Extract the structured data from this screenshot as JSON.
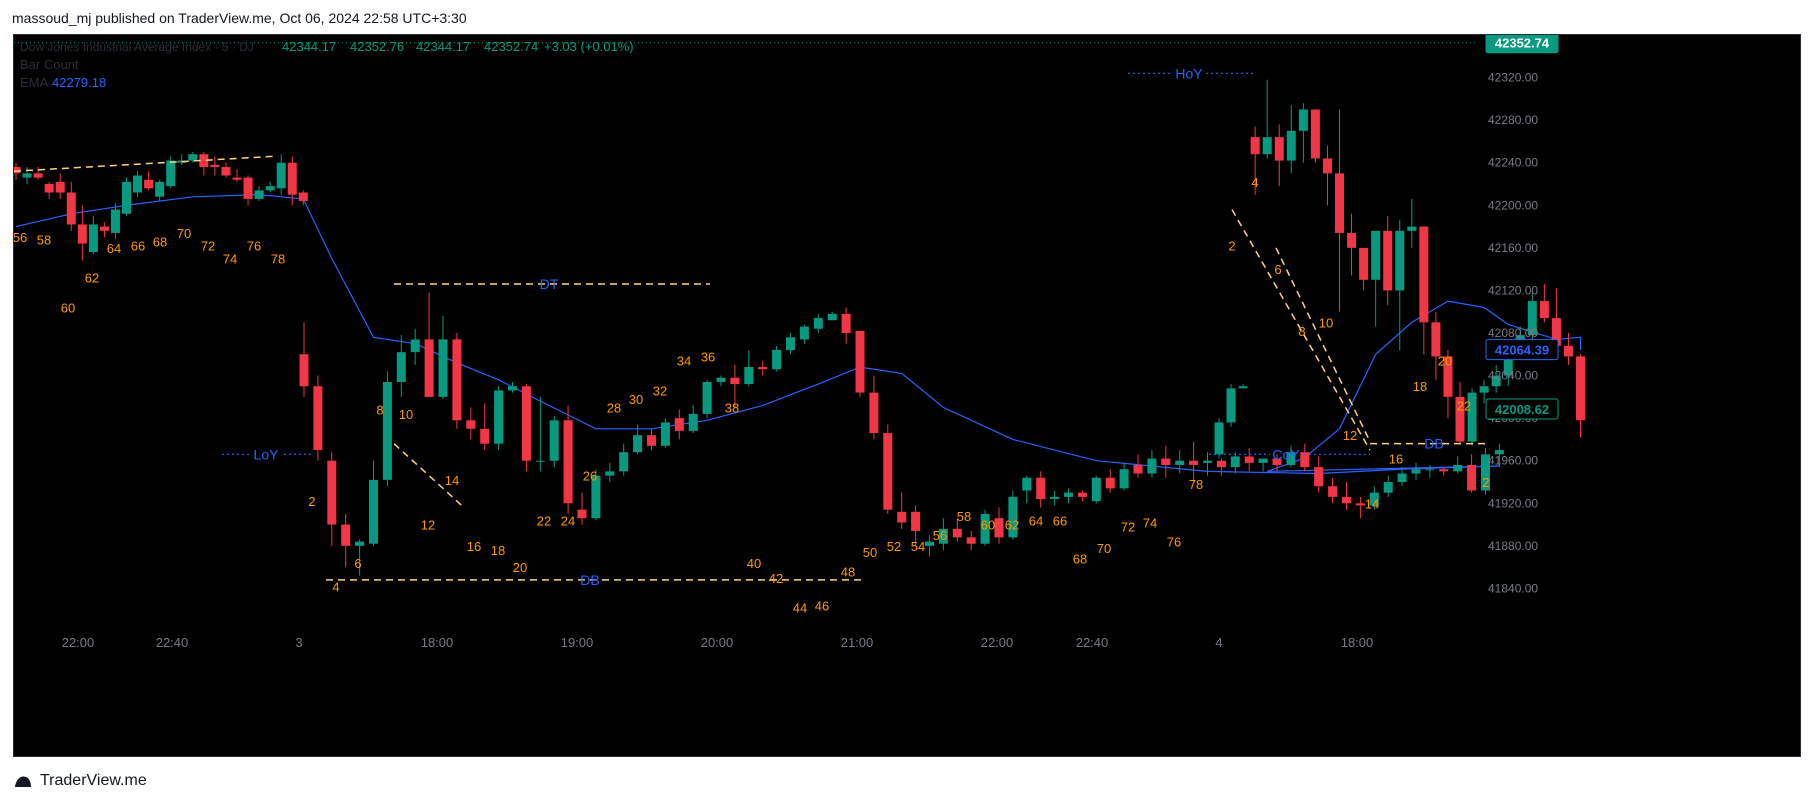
{
  "header": {
    "published": "massoud_mj published on TraderView.me, Oct 06, 2024 22:58 UTC+3:30"
  },
  "footer": {
    "brand": "TraderView.me"
  },
  "legend": {
    "symbol": "Dow Jones Industrial Average Index · 5 · DJ",
    "open": "42344.17",
    "high": "42352.76",
    "low": "42344.17",
    "close": "42352.74",
    "change": "+3.03 (+0.01%)",
    "bar_count_label": "Bar Count",
    "ema_label": "EMA",
    "ema_value": "42279.18"
  },
  "price_badges": {
    "last": "42352.74",
    "ema": "42064.39",
    "cursor": "42008.62"
  },
  "colors": {
    "up": "#089981",
    "down": "#f23645",
    "ema": "#2962ff",
    "bar_count": "#ff9800",
    "annotation": "#ffd180",
    "label_blue": "#2962ff",
    "axis_text": "#787b86"
  },
  "chart_data": {
    "type": "candlestick",
    "ylim": [
      41800,
      42360
    ],
    "y_ticks": [
      "42320.00",
      "42280.00",
      "42240.00",
      "42200.00",
      "42160.00",
      "42120.00",
      "42080.00",
      "42040.00",
      "42000.00",
      "41960.00",
      "41920.00",
      "41880.00",
      "41840.00"
    ],
    "x_ticks": [
      "22:00",
      "22:40",
      "3",
      "18:00",
      "19:00",
      "20:00",
      "21:00",
      "22:00",
      "22:40",
      "4",
      "18:00"
    ],
    "candles": [
      [
        42236,
        42240,
        42224,
        42230
      ],
      [
        42226,
        42236,
        42220,
        42230
      ],
      [
        42230,
        42236,
        42224,
        42226
      ],
      [
        42220,
        42222,
        42206,
        42212
      ],
      [
        42222,
        42230,
        42206,
        42212
      ],
      [
        42212,
        42222,
        42176,
        42182
      ],
      [
        42182,
        42200,
        42148,
        42164
      ],
      [
        42156,
        42190,
        42154,
        42182
      ],
      [
        42180,
        42184,
        42170,
        42176
      ],
      [
        42174,
        42202,
        42168,
        42196
      ],
      [
        42192,
        42226,
        42190,
        42222
      ],
      [
        42212,
        42232,
        42208,
        42228
      ],
      [
        42224,
        42232,
        42214,
        42216
      ],
      [
        42208,
        42224,
        42204,
        42222
      ],
      [
        42218,
        42246,
        42216,
        42242
      ],
      [
        42240,
        42248,
        42238,
        42242
      ],
      [
        42242,
        42250,
        42240,
        42248
      ],
      [
        42248,
        42250,
        42228,
        42236
      ],
      [
        42238,
        42246,
        42228,
        42236
      ],
      [
        42236,
        42240,
        42226,
        42228
      ],
      [
        42226,
        42234,
        42222,
        42224
      ],
      [
        42226,
        42228,
        42200,
        42206
      ],
      [
        42206,
        42218,
        42204,
        42214
      ],
      [
        42214,
        42222,
        42212,
        42218
      ],
      [
        42216,
        42248,
        42210,
        42240
      ],
      [
        42240,
        42246,
        42200,
        42210
      ],
      [
        42212,
        42214,
        42200,
        42204
      ],
      [
        42060,
        42090,
        42020,
        42030
      ],
      [
        42030,
        42040,
        41960,
        41970
      ],
      [
        41960,
        41968,
        41880,
        41900
      ],
      [
        41900,
        41910,
        41860,
        41880
      ],
      [
        41880,
        41886,
        41852,
        41884
      ],
      [
        41882,
        41960,
        41880,
        41942
      ],
      [
        41942,
        42044,
        41936,
        42034
      ],
      [
        42034,
        42078,
        42020,
        42062
      ],
      [
        42062,
        42084,
        42050,
        42074
      ],
      [
        42074,
        42118,
        42020,
        42020
      ],
      [
        42020,
        42096,
        42018,
        42074
      ],
      [
        42074,
        42080,
        41990,
        41998
      ],
      [
        41998,
        42010,
        41980,
        41990
      ],
      [
        41990,
        42014,
        41970,
        41976
      ],
      [
        41976,
        42030,
        41970,
        42026
      ],
      [
        42026,
        42034,
        42024,
        42030
      ],
      [
        42030,
        42032,
        41950,
        41960
      ],
      [
        41960,
        42020,
        41950,
        41960
      ],
      [
        41960,
        42002,
        41954,
        41998
      ],
      [
        41998,
        42012,
        41910,
        41920
      ],
      [
        41914,
        41930,
        41900,
        41906
      ],
      [
        41906,
        41952,
        41904,
        41946
      ],
      [
        41946,
        41958,
        41940,
        41950
      ],
      [
        41950,
        41976,
        41946,
        41968
      ],
      [
        41968,
        41994,
        41966,
        41984
      ],
      [
        41984,
        41990,
        41970,
        41974
      ],
      [
        41974,
        42000,
        41972,
        41996
      ],
      [
        42000,
        42008,
        41980,
        41988
      ],
      [
        41988,
        42012,
        41986,
        42004
      ],
      [
        42004,
        42036,
        42000,
        42034
      ],
      [
        42034,
        42040,
        42030,
        42038
      ],
      [
        42038,
        42050,
        42010,
        42032
      ],
      [
        42032,
        42064,
        42030,
        42048
      ],
      [
        42048,
        42054,
        42040,
        42046
      ],
      [
        42046,
        42068,
        42044,
        42064
      ],
      [
        42064,
        42080,
        42060,
        42076
      ],
      [
        42074,
        42088,
        42070,
        42086
      ],
      [
        42084,
        42098,
        42080,
        42094
      ],
      [
        42092,
        42100,
        42094,
        42098
      ],
      [
        42098,
        42104,
        42070,
        42080
      ],
      [
        42082,
        42082,
        42020,
        42024
      ],
      [
        42024,
        42040,
        41980,
        41986
      ],
      [
        41986,
        41994,
        41910,
        41914
      ],
      [
        41912,
        41930,
        41896,
        41902
      ],
      [
        41912,
        41918,
        41880,
        41894
      ],
      [
        41880,
        41890,
        41870,
        41884
      ],
      [
        41882,
        41906,
        41876,
        41896
      ],
      [
        41896,
        41906,
        41884,
        41888
      ],
      [
        41888,
        41894,
        41876,
        41882
      ],
      [
        41882,
        41914,
        41880,
        41910
      ],
      [
        41906,
        41916,
        41882,
        41888
      ],
      [
        41888,
        41932,
        41886,
        41926
      ],
      [
        41932,
        41946,
        41920,
        41944
      ],
      [
        41944,
        41950,
        41916,
        41924
      ],
      [
        41924,
        41932,
        41918,
        41926
      ],
      [
        41926,
        41934,
        41920,
        41930
      ],
      [
        41930,
        41932,
        41922,
        41926
      ],
      [
        41922,
        41946,
        41920,
        41944
      ],
      [
        41944,
        41952,
        41930,
        41934
      ],
      [
        41934,
        41958,
        41932,
        41952
      ],
      [
        41956,
        41966,
        41944,
        41948
      ],
      [
        41948,
        41970,
        41944,
        41962
      ],
      [
        41962,
        41974,
        41944,
        41956
      ],
      [
        41956,
        41970,
        41948,
        41960
      ],
      [
        41960,
        41978,
        41940,
        41956
      ],
      [
        41958,
        41968,
        41946,
        41960
      ],
      [
        41960,
        41962,
        41946,
        41954
      ],
      [
        41954,
        41968,
        41948,
        41964
      ],
      [
        41964,
        41972,
        41950,
        41958
      ],
      [
        41958,
        41962,
        41950,
        41962
      ],
      [
        41962,
        41966,
        41950,
        41956
      ],
      [
        41956,
        41974,
        41954,
        41968
      ],
      [
        41968,
        41976,
        41950,
        41954
      ],
      [
        41954,
        41964,
        41930,
        41936
      ],
      [
        41936,
        41944,
        41920,
        41926
      ],
      [
        41926,
        41940,
        41914,
        41920
      ],
      [
        41920,
        41926,
        41906,
        41918
      ],
      [
        41918,
        41936,
        41914,
        41930
      ],
      [
        41930,
        41946,
        41926,
        41940
      ],
      [
        41940,
        41954,
        41936,
        41948
      ],
      [
        41948,
        41958,
        41942,
        41952
      ],
      [
        41952,
        41956,
        41944,
        41952
      ],
      [
        41952,
        41954,
        41946,
        41950
      ],
      [
        41950,
        41964,
        41948,
        41956
      ],
      [
        41956,
        41966,
        41930,
        41932
      ],
      [
        41932,
        41972,
        41928,
        41966
      ],
      [
        41966,
        41976,
        41954,
        41970
      ],
      [
        41966,
        42000,
        41962,
        41996
      ],
      [
        41996,
        42032,
        41992,
        42028
      ],
      [
        42028,
        42032,
        42028,
        42030
      ],
      [
        42264,
        42274,
        42210,
        42248
      ],
      [
        42248,
        42318,
        42244,
        42264
      ],
      [
        42264,
        42276,
        42218,
        42242
      ],
      [
        42242,
        42294,
        42230,
        42270
      ],
      [
        42270,
        42296,
        42240,
        42290
      ],
      [
        42290,
        42290,
        42240,
        42244
      ],
      [
        42244,
        42256,
        42200,
        42230
      ],
      [
        42230,
        42290,
        42100,
        42174
      ],
      [
        42174,
        42192,
        42134,
        42160
      ],
      [
        42160,
        42160,
        42120,
        42130
      ],
      [
        42130,
        42176,
        42086,
        42176
      ],
      [
        42176,
        42190,
        42106,
        42120
      ],
      [
        42120,
        42186,
        42064,
        42176
      ],
      [
        42176,
        42206,
        42160,
        42180
      ],
      [
        42180,
        42176,
        42060,
        42090
      ],
      [
        42090,
        42100,
        42036,
        42058
      ],
      [
        42058,
        42064,
        42000,
        42020
      ],
      [
        42020,
        42034,
        41976,
        41978
      ],
      [
        41978,
        42028,
        41974,
        42024
      ],
      [
        42024,
        42036,
        42014,
        42030
      ],
      [
        42030,
        42050,
        42024,
        42040
      ],
      [
        42040,
        42068,
        42030,
        42066
      ],
      [
        42066,
        42086,
        42060,
        42078
      ],
      [
        42078,
        42118,
        42074,
        42110
      ],
      [
        42110,
        42126,
        42090,
        42094
      ],
      [
        42094,
        42122,
        42060,
        42068
      ],
      [
        42068,
        42080,
        42050,
        42058
      ],
      [
        42058,
        42060,
        41982,
        41998
      ]
    ],
    "ema": [
      [
        0,
        42180
      ],
      [
        5,
        42192
      ],
      [
        10,
        42200
      ],
      [
        16,
        42208
      ],
      [
        22,
        42210
      ],
      [
        26,
        42206
      ],
      [
        29,
        42150
      ],
      [
        32,
        42076
      ],
      [
        35,
        42070
      ],
      [
        38,
        42052
      ],
      [
        41,
        42036
      ],
      [
        44,
        42016
      ],
      [
        48,
        41990
      ],
      [
        52,
        41990
      ],
      [
        56,
        41998
      ],
      [
        60,
        42012
      ],
      [
        64,
        42032
      ],
      [
        67,
        42048
      ],
      [
        70,
        42042
      ],
      [
        73,
        42010
      ],
      [
        78,
        41980
      ],
      [
        84,
        41960
      ],
      [
        92,
        41950
      ],
      [
        100,
        41948
      ],
      [
        106,
        41952
      ],
      [
        113,
        41955
      ],
      [
        118,
        41950
      ],
      [
        121,
        41962
      ],
      [
        124,
        41990
      ],
      [
        127,
        42060
      ],
      [
        130,
        42090
      ],
      [
        133,
        42110
      ],
      [
        136,
        42104
      ],
      [
        138,
        42088
      ],
      [
        142,
        42074
      ],
      [
        146,
        42076
      ],
      [
        150,
        42064
      ]
    ],
    "bar_count_labels": [
      "56",
      "58",
      "60",
      "62",
      "64",
      "66",
      "68",
      "70",
      "72",
      "74",
      "76",
      "78",
      "2",
      "4",
      "6",
      "8",
      "10",
      "12",
      "14",
      "16",
      "18",
      "20",
      "22",
      "24",
      "26",
      "28",
      "30",
      "32",
      "34",
      "36",
      "38",
      "40",
      "42",
      "44",
      "46",
      "48",
      "50",
      "52",
      "54",
      "56",
      "58",
      "60",
      "62",
      "64",
      "66",
      "68",
      "70",
      "72",
      "74",
      "76",
      "78",
      "2",
      "4",
      "6",
      "8",
      "10",
      "12",
      "14",
      "16",
      "18",
      "20",
      "22",
      "2"
    ],
    "annotations": [
      "HoY",
      "DT",
      "LoY",
      "DB",
      "CoY",
      "DB"
    ]
  }
}
